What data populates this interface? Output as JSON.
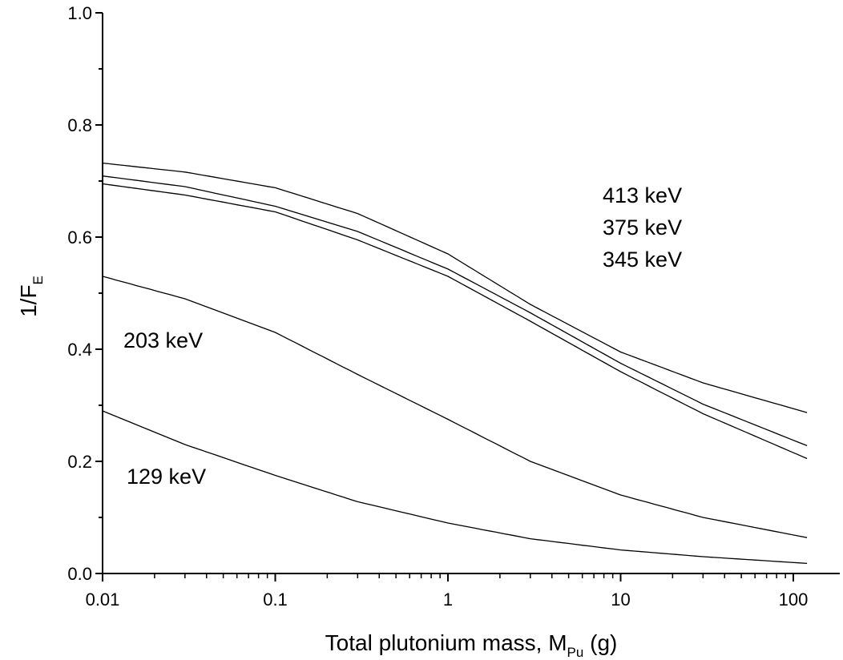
{
  "chart_data": {
    "type": "line",
    "title": "",
    "xlabel": {
      "main": "Total plutonium mass, M",
      "sub": "Pu",
      "suffix": " (g)"
    },
    "ylabel": {
      "main": "1/F",
      "sub": "E"
    },
    "xscale": "log",
    "xlim": [
      0.01,
      200
    ],
    "ylim": [
      0,
      1.0
    ],
    "xticks": [
      0.01,
      0.1,
      1,
      10,
      100
    ],
    "xtick_labels": [
      "0.01",
      "0.1",
      "1",
      "10",
      "100"
    ],
    "yticks": [
      0,
      0.2,
      0.4,
      0.6,
      0.8,
      1.0
    ],
    "ytick_labels": [
      "0.0",
      "0.2",
      "0.4",
      "0.6",
      "0.8",
      "1.0"
    ],
    "grid": false,
    "series": [
      {
        "name": "413 keV",
        "x": [
          0.01,
          0.03,
          0.1,
          0.3,
          1,
          3,
          10,
          30,
          120
        ],
        "y": [
          0.732,
          0.716,
          0.688,
          0.642,
          0.57,
          0.48,
          0.395,
          0.34,
          0.287
        ]
      },
      {
        "name": "375 keV",
        "x": [
          0.01,
          0.03,
          0.1,
          0.3,
          1,
          3,
          10,
          30,
          120
        ],
        "y": [
          0.709,
          0.69,
          0.655,
          0.61,
          0.543,
          0.465,
          0.375,
          0.302,
          0.228
        ]
      },
      {
        "name": "345 keV",
        "x": [
          0.01,
          0.03,
          0.1,
          0.3,
          1,
          3,
          10,
          30,
          120
        ],
        "y": [
          0.695,
          0.675,
          0.645,
          0.595,
          0.53,
          0.45,
          0.36,
          0.285,
          0.205
        ]
      },
      {
        "name": "203 keV",
        "x": [
          0.01,
          0.03,
          0.1,
          0.3,
          1,
          3,
          10,
          30,
          120
        ],
        "y": [
          0.53,
          0.49,
          0.43,
          0.355,
          0.275,
          0.2,
          0.14,
          0.1,
          0.064
        ]
      },
      {
        "name": "129 keV",
        "x": [
          0.01,
          0.03,
          0.1,
          0.3,
          1,
          3,
          10,
          30,
          120
        ],
        "y": [
          0.29,
          0.23,
          0.175,
          0.128,
          0.09,
          0.062,
          0.042,
          0.03,
          0.018
        ]
      }
    ],
    "annotations": [
      {
        "text": "413 keV",
        "near_series": "413 keV"
      },
      {
        "text": "375 keV",
        "near_series": "375 keV"
      },
      {
        "text": "345 keV",
        "near_series": "345 keV"
      },
      {
        "text": "203 keV",
        "near_series": "203 keV"
      },
      {
        "text": "129 keV",
        "near_series": "129 keV"
      }
    ]
  }
}
